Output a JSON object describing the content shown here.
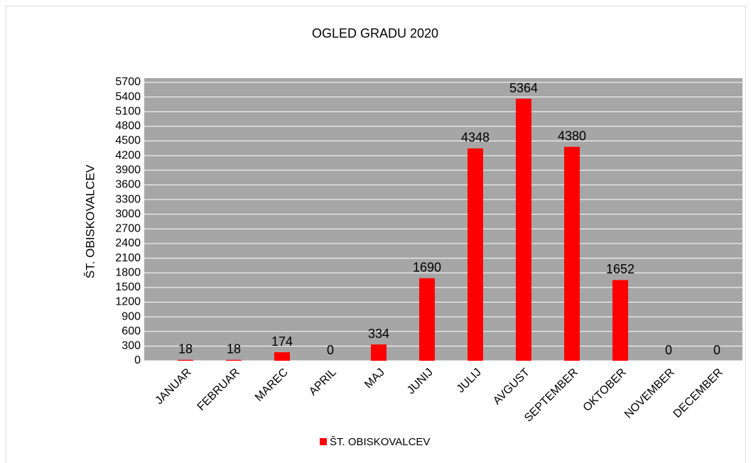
{
  "chart_data": {
    "type": "bar",
    "title": "OGLED GRADU 2020",
    "y_label": "ŠT. OBISKOVALCEV",
    "categories": [
      "JANUAR",
      "FEBRUAR",
      "MAREC",
      "APRIL",
      "MAJ",
      "JUNIJ",
      "JULIJ",
      "AVGUST",
      "SEPTEMBER",
      "OKTOBER",
      "NOVEMBER",
      "DECEMBER"
    ],
    "series": [
      {
        "name": "ŠT. OBISKOVALCEV",
        "color": "#ff0000",
        "values": [
          18,
          18,
          174,
          0,
          334,
          1690,
          4348,
          5364,
          4380,
          1652,
          0,
          0
        ]
      }
    ],
    "ylim": [
      0,
      5700
    ],
    "yticks": [
      0,
      300,
      600,
      900,
      1200,
      1500,
      1800,
      2100,
      2400,
      2700,
      3000,
      3300,
      3600,
      3900,
      4200,
      4500,
      4800,
      5100,
      5400,
      5700
    ],
    "grid": true,
    "legend": "bottom"
  }
}
